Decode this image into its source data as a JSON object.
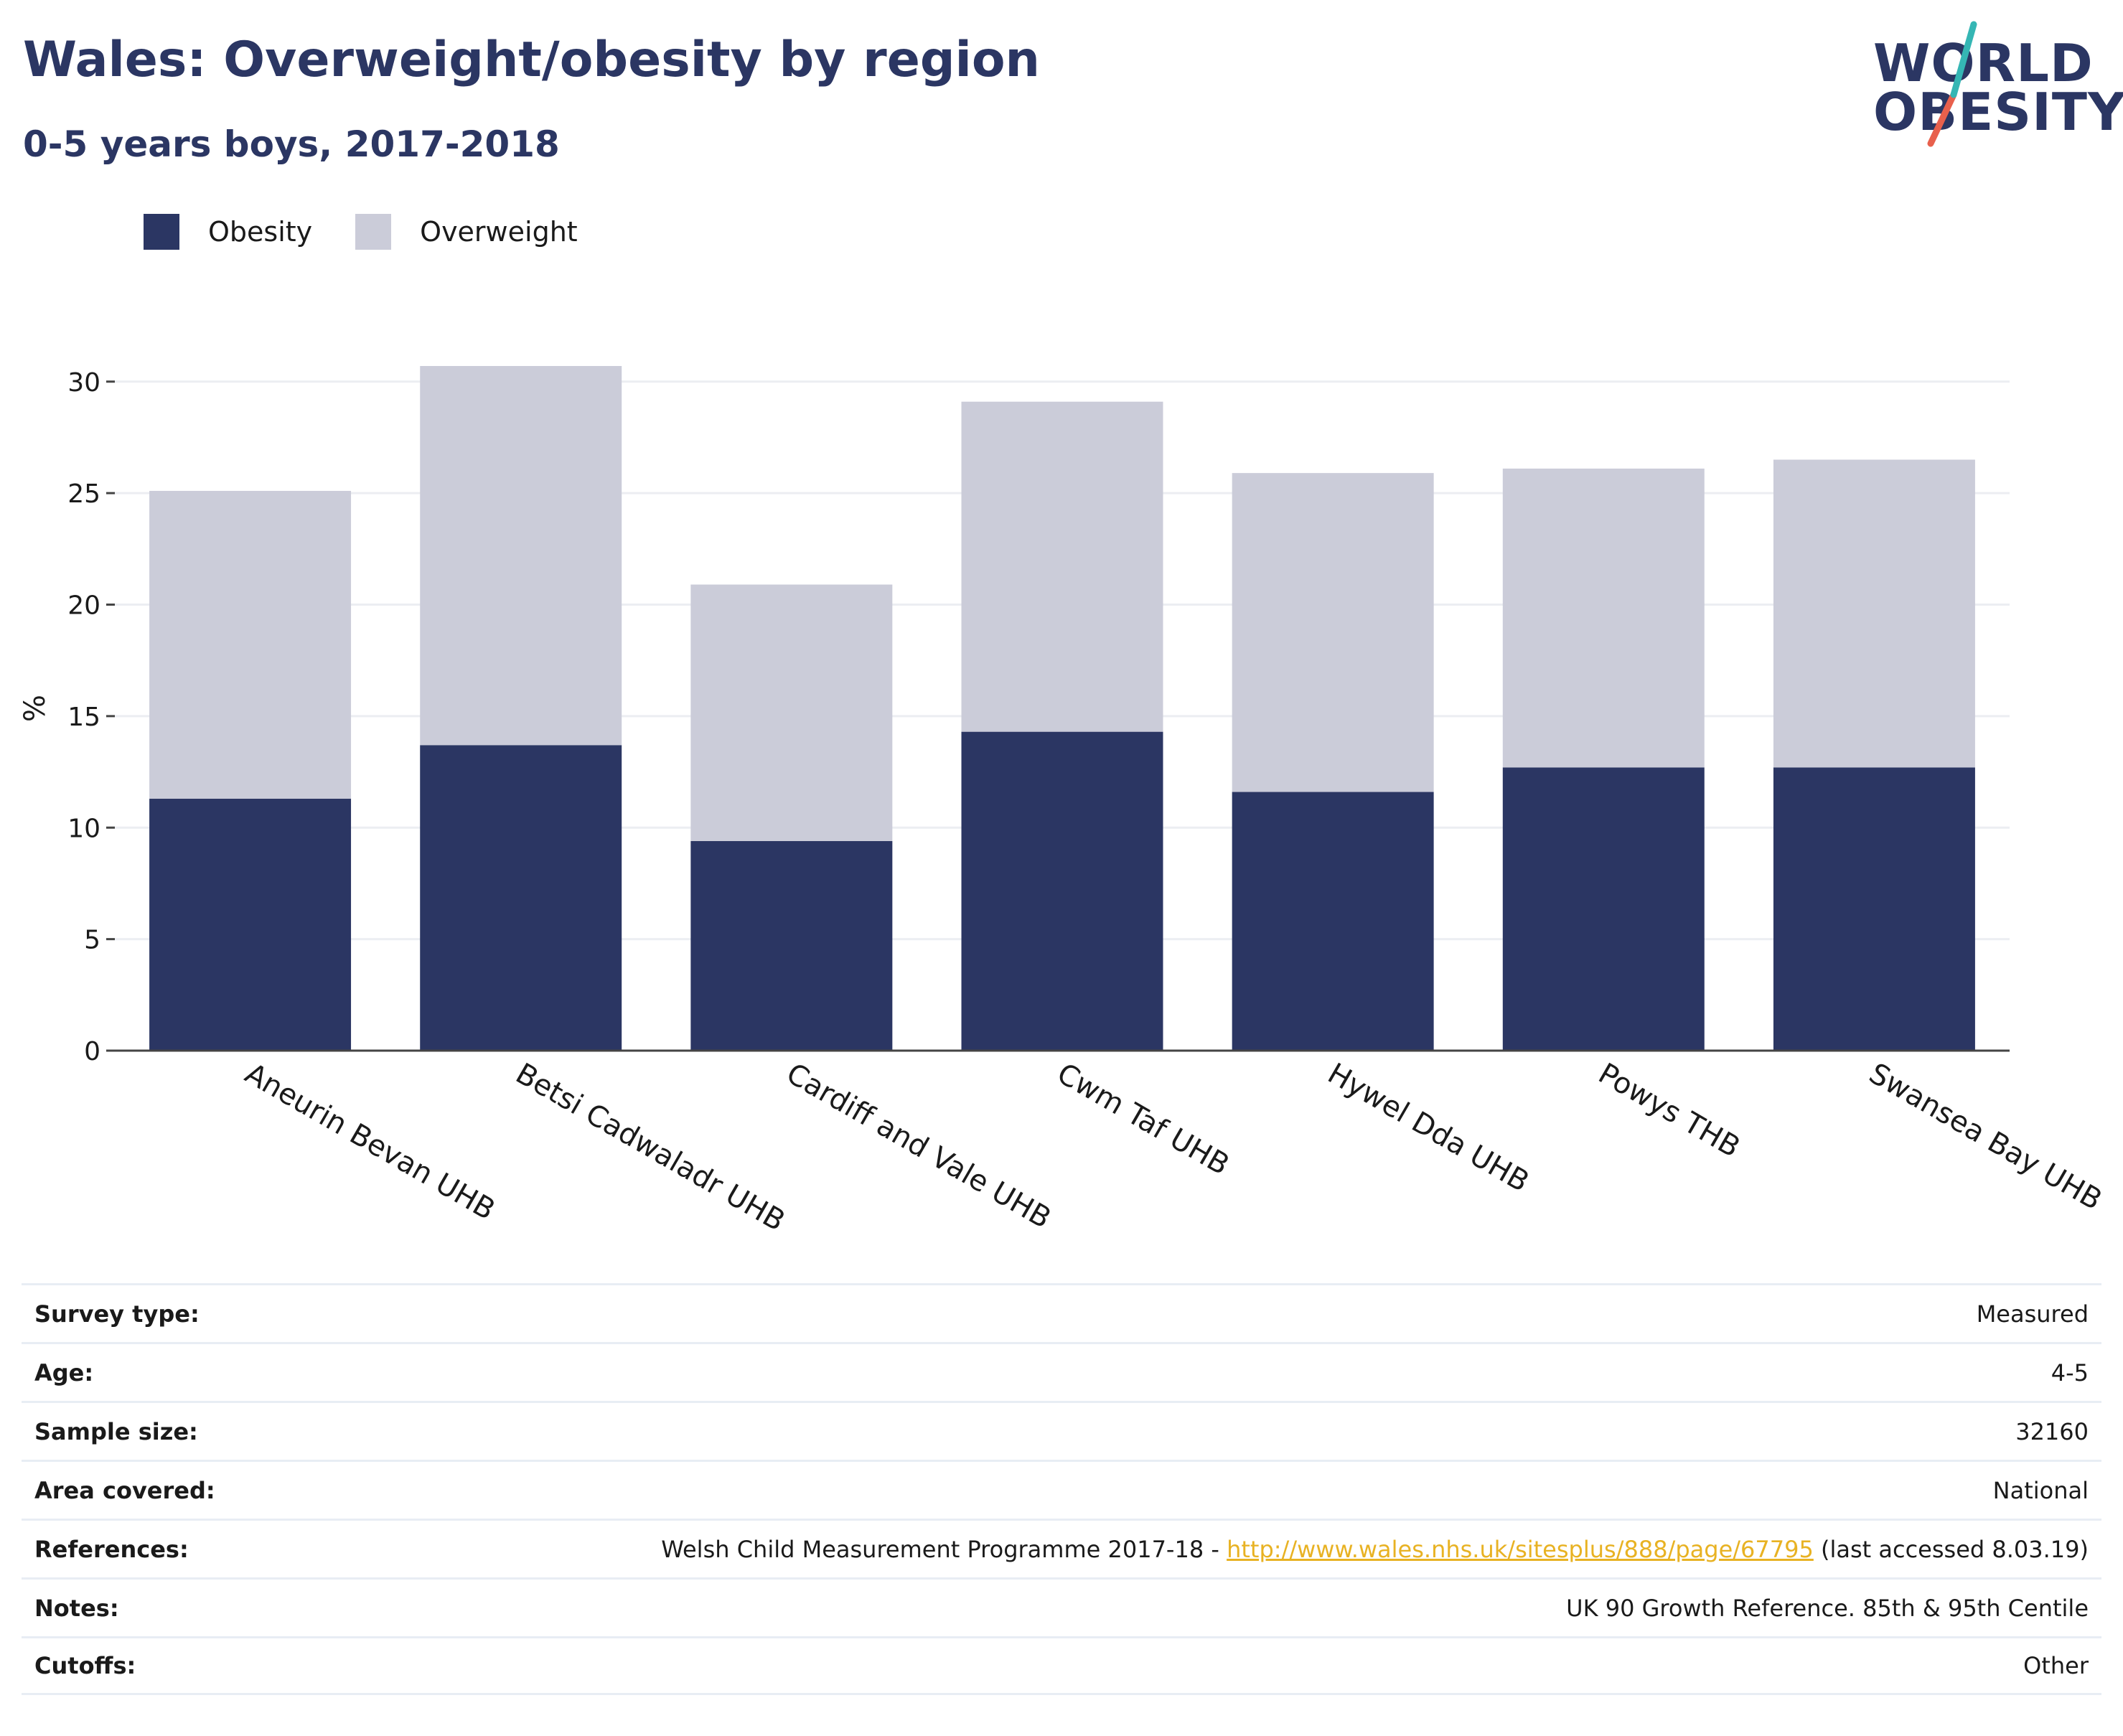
{
  "header": {
    "title": "Wales: Overweight/obesity by region",
    "subtitle": "0-5 years boys, 2017-2018"
  },
  "logo": {
    "line1": "WORLD",
    "line2": "OBESITY",
    "colors": {
      "text": "#2b3663",
      "slash_top": "#35b6b4",
      "slash_bottom": "#e8604c"
    }
  },
  "legend": [
    {
      "label": "Obesity",
      "color": "#2b3663"
    },
    {
      "label": "Overweight",
      "color": "#cbccd9"
    }
  ],
  "chart_data": {
    "type": "bar",
    "stacked": true,
    "categories": [
      "Aneurin Bevan UHB",
      "Betsi Cadwaladr UHB",
      "Cardiff and Vale UHB",
      "Cwm Taf UHB",
      "Hywel Dda UHB",
      "Powys THB",
      "Swansea Bay UHB"
    ],
    "series": [
      {
        "name": "Obesity",
        "color": "#2b3663",
        "values": [
          11.3,
          13.7,
          9.4,
          14.3,
          11.6,
          12.7,
          12.7
        ]
      },
      {
        "name": "Overweight",
        "color": "#cbccd9",
        "values": [
          13.8,
          17.0,
          11.5,
          14.8,
          14.3,
          13.4,
          13.8
        ]
      }
    ],
    "ylabel": "%",
    "ylim": [
      0,
      30
    ],
    "yticks": [
      0,
      5,
      10,
      15,
      20,
      25,
      30
    ],
    "grid": true,
    "legend_position": "top-left"
  },
  "info": {
    "rows": [
      {
        "key": "Survey type:",
        "value": "Measured"
      },
      {
        "key": "Age:",
        "value": "4-5"
      },
      {
        "key": "Sample size:",
        "value": "32160"
      },
      {
        "key": "Area covered:",
        "value": "National"
      },
      {
        "key": "References:",
        "value_prefix": "Welsh Child Measurement Programme 2017-18 - ",
        "link": "http://www.wales.nhs.uk/sitesplus/888/page/67795",
        "value_suffix": " (last accessed 8.03.19)"
      },
      {
        "key": "Notes:",
        "value": "UK 90 Growth Reference. 85th & 95th Centile"
      },
      {
        "key": "Cutoffs:",
        "value": "Other"
      }
    ]
  }
}
